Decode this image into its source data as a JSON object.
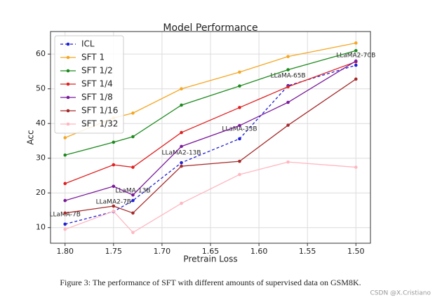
{
  "chart_data": {
    "type": "line",
    "title": "Model Performance",
    "x_label": "Pretrain Loss",
    "y_label": "Acc",
    "x": [
      1.8,
      1.75,
      1.73,
      1.68,
      1.62,
      1.57,
      1.5
    ],
    "xlim": [
      1.815,
      1.485
    ],
    "ylim": [
      5.5,
      66.5
    ],
    "xticks": [
      {
        "value": 1.8,
        "label": "1.80"
      },
      1.75,
      {
        "value": 1.7,
        "label": "1.70"
      },
      1.65,
      {
        "value": 1.6,
        "label": "1.60"
      },
      1.55,
      {
        "value": 1.5,
        "label": "1.50"
      }
    ],
    "yticks": [
      10,
      20,
      30,
      40,
      50,
      60
    ],
    "grid": true,
    "legend": "upper left",
    "series": [
      {
        "name": "ICL",
        "color": "#1f1fd6",
        "dashed": true,
        "values": [
          11.0,
          14.6,
          17.8,
          28.7,
          35.6,
          50.9,
          56.8
        ],
        "point_labels": [
          "LLaMA-7B",
          "LLaMA2-7B",
          "LLaMA-13B",
          "LLaMA2-13B",
          "LLaMA-33B",
          "LLaMA-65B",
          "LLaMA2-70B"
        ]
      },
      {
        "name": "SFT 1",
        "color": "#f5a623",
        "values": [
          35.9,
          41.6,
          43.0,
          50.0,
          54.8,
          59.3,
          63.2
        ]
      },
      {
        "name": "SFT 1/2",
        "color": "#1e8a1e",
        "values": [
          30.9,
          34.6,
          36.2,
          45.3,
          50.8,
          55.5,
          61.0
        ]
      },
      {
        "name": "SFT 1/4",
        "color": "#e02020",
        "values": [
          22.7,
          28.1,
          27.4,
          37.4,
          44.6,
          50.6,
          57.8
        ]
      },
      {
        "name": "SFT 1/8",
        "color": "#7a1a9a",
        "values": [
          17.8,
          21.9,
          19.4,
          33.4,
          39.4,
          46.1,
          58.0
        ]
      },
      {
        "name": "SFT 1/16",
        "color": "#a52a2a",
        "values": [
          14.2,
          16.2,
          14.2,
          27.7,
          29.1,
          39.5,
          52.8
        ]
      },
      {
        "name": "SFT 1/32",
        "color": "#ffb6c1",
        "values": [
          9.5,
          14.7,
          8.6,
          17.0,
          25.3,
          28.9,
          27.4
        ]
      }
    ]
  },
  "caption": "Figure 3: The performance of SFT with different amounts of supervised data on GSM8K.",
  "watermark": "CSDN @X.Cristiano"
}
